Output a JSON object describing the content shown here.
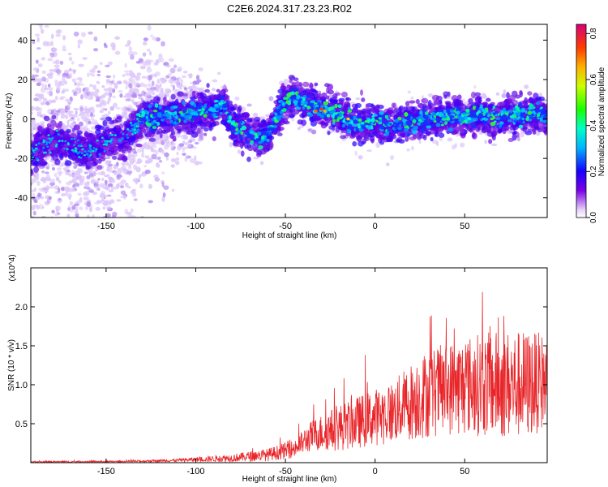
{
  "title": "C2E6.2024.317.23.23.R02",
  "chart_data": [
    {
      "type": "heatmap",
      "name": "spectrogram",
      "xlabel": "Height of straight line (km)",
      "ylabel": "Frequency (Hz)",
      "xlim": [
        -192,
        96
      ],
      "ylim": [
        -50,
        48
      ],
      "xticks": [
        -150,
        -100,
        -50,
        0,
        50
      ],
      "yticks": [
        -40,
        -20,
        0,
        20,
        40
      ],
      "colorbar": {
        "label": "Normalized spectral amplitude",
        "range": [
          0,
          0.84
        ],
        "ticks": [
          0.0,
          0.2,
          0.4,
          0.6,
          0.8
        ],
        "tick_labels": [
          "0.0",
          "0.2",
          "0.4",
          "0.6",
          "0.8"
        ]
      },
      "ridge_center_hz": [
        {
          "x": -190,
          "y": -17
        },
        {
          "x": -180,
          "y": -10
        },
        {
          "x": -170,
          "y": -14
        },
        {
          "x": -160,
          "y": -16
        },
        {
          "x": -150,
          "y": -12
        },
        {
          "x": -140,
          "y": -10
        },
        {
          "x": -130,
          "y": 0
        },
        {
          "x": -120,
          "y": 2
        },
        {
          "x": -110,
          "y": 1
        },
        {
          "x": -100,
          "y": 3
        },
        {
          "x": -90,
          "y": 4
        },
        {
          "x": -85,
          "y": 8
        },
        {
          "x": -80,
          "y": -2
        },
        {
          "x": -75,
          "y": -6
        },
        {
          "x": -70,
          "y": -8
        },
        {
          "x": -65,
          "y": -10
        },
        {
          "x": -60,
          "y": -9
        },
        {
          "x": -55,
          "y": 0
        },
        {
          "x": -50,
          "y": 10
        },
        {
          "x": -45,
          "y": 11
        },
        {
          "x": -40,
          "y": 8
        },
        {
          "x": -30,
          "y": 5
        },
        {
          "x": -20,
          "y": 2
        },
        {
          "x": -10,
          "y": -3
        },
        {
          "x": 0,
          "y": -1
        },
        {
          "x": 10,
          "y": -4
        },
        {
          "x": 20,
          "y": -1
        },
        {
          "x": 30,
          "y": 0
        },
        {
          "x": 40,
          "y": 1
        },
        {
          "x": 50,
          "y": 1
        },
        {
          "x": 60,
          "y": 2
        },
        {
          "x": 70,
          "y": 1
        },
        {
          "x": 80,
          "y": 2
        },
        {
          "x": 90,
          "y": 2
        }
      ]
    },
    {
      "type": "line",
      "name": "snr",
      "xlabel": "Height of straight line (km)",
      "ylabel": "SNR (10 * v/v)",
      "scale_label": "(x10^4)",
      "xlim": [
        -192,
        96
      ],
      "ylim": [
        0,
        2.5
      ],
      "xticks": [
        -150,
        -100,
        -50,
        0,
        50
      ],
      "yticks": [
        0.5,
        1.0,
        1.5,
        2.0
      ],
      "ytick_labels": [
        "0.5",
        "1.0",
        "1.5",
        "2.0"
      ],
      "color": "#e8262a",
      "envelope": [
        {
          "x": -192,
          "mean": 0.01,
          "spread": 0.01
        },
        {
          "x": -140,
          "mean": 0.015,
          "spread": 0.01
        },
        {
          "x": -110,
          "mean": 0.03,
          "spread": 0.02
        },
        {
          "x": -80,
          "mean": 0.06,
          "spread": 0.05
        },
        {
          "x": -60,
          "mean": 0.1,
          "spread": 0.08
        },
        {
          "x": -45,
          "mean": 0.18,
          "spread": 0.12
        },
        {
          "x": -35,
          "mean": 0.35,
          "spread": 0.2
        },
        {
          "x": -20,
          "mean": 0.45,
          "spread": 0.3
        },
        {
          "x": -5,
          "mean": 0.55,
          "spread": 0.35
        },
        {
          "x": 10,
          "mean": 0.65,
          "spread": 0.4
        },
        {
          "x": 25,
          "mean": 0.85,
          "spread": 0.55
        },
        {
          "x": 40,
          "mean": 0.95,
          "spread": 0.6
        },
        {
          "x": 55,
          "mean": 1.0,
          "spread": 0.65
        },
        {
          "x": 70,
          "mean": 1.0,
          "spread": 0.7
        },
        {
          "x": 85,
          "mean": 1.0,
          "spread": 0.7
        },
        {
          "x": 96,
          "mean": 1.05,
          "spread": 0.6
        }
      ]
    }
  ]
}
